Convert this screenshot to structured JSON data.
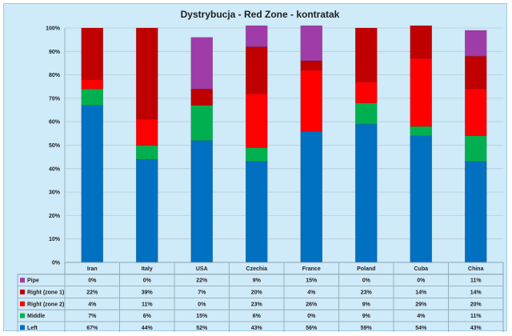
{
  "chart_data": {
    "type": "bar",
    "stacked": true,
    "title": "Dystrybucja - Red Zone - kontratak",
    "categories": [
      "Iran",
      "Italy",
      "USA",
      "Czechia",
      "France",
      "Poland",
      "Cuba",
      "China"
    ],
    "ylim": [
      0,
      100
    ],
    "yticks": [
      "0%",
      "10%",
      "20%",
      "30%",
      "40%",
      "50%",
      "60%",
      "70%",
      "80%",
      "90%",
      "100%"
    ],
    "grid": true,
    "legend": "data-table-left",
    "series": [
      {
        "name": "Left",
        "color": "#0070c0",
        "values": [
          67,
          44,
          52,
          43,
          56,
          59,
          54,
          43
        ],
        "labels": [
          "67%",
          "44%",
          "52%",
          "43%",
          "56%",
          "59%",
          "54%",
          "43%"
        ]
      },
      {
        "name": "Middle",
        "color": "#00b050",
        "values": [
          7,
          6,
          15,
          6,
          0,
          9,
          4,
          11
        ],
        "labels": [
          "7%",
          "6%",
          "15%",
          "6%",
          "0%",
          "9%",
          "4%",
          "11%"
        ]
      },
      {
        "name": "Right (zone 2)",
        "color": "#ff0000",
        "values": [
          4,
          11,
          0,
          23,
          26,
          9,
          29,
          20
        ],
        "labels": [
          "4%",
          "11%",
          "0%",
          "23%",
          "26%",
          "9%",
          "29%",
          "20%"
        ]
      },
      {
        "name": "Right (zone 1)",
        "color": "#c00000",
        "values": [
          22,
          39,
          7,
          20,
          4,
          23,
          14,
          14
        ],
        "labels": [
          "22%",
          "39%",
          "7%",
          "20%",
          "4%",
          "23%",
          "14%",
          "14%"
        ]
      },
      {
        "name": "Pipe",
        "color": "#a03ca8",
        "values": [
          0,
          0,
          22,
          9,
          15,
          0,
          0,
          11
        ],
        "labels": [
          "0%",
          "0%",
          "22%",
          "9%",
          "15%",
          "0%",
          "0%",
          "11%"
        ]
      }
    ]
  }
}
